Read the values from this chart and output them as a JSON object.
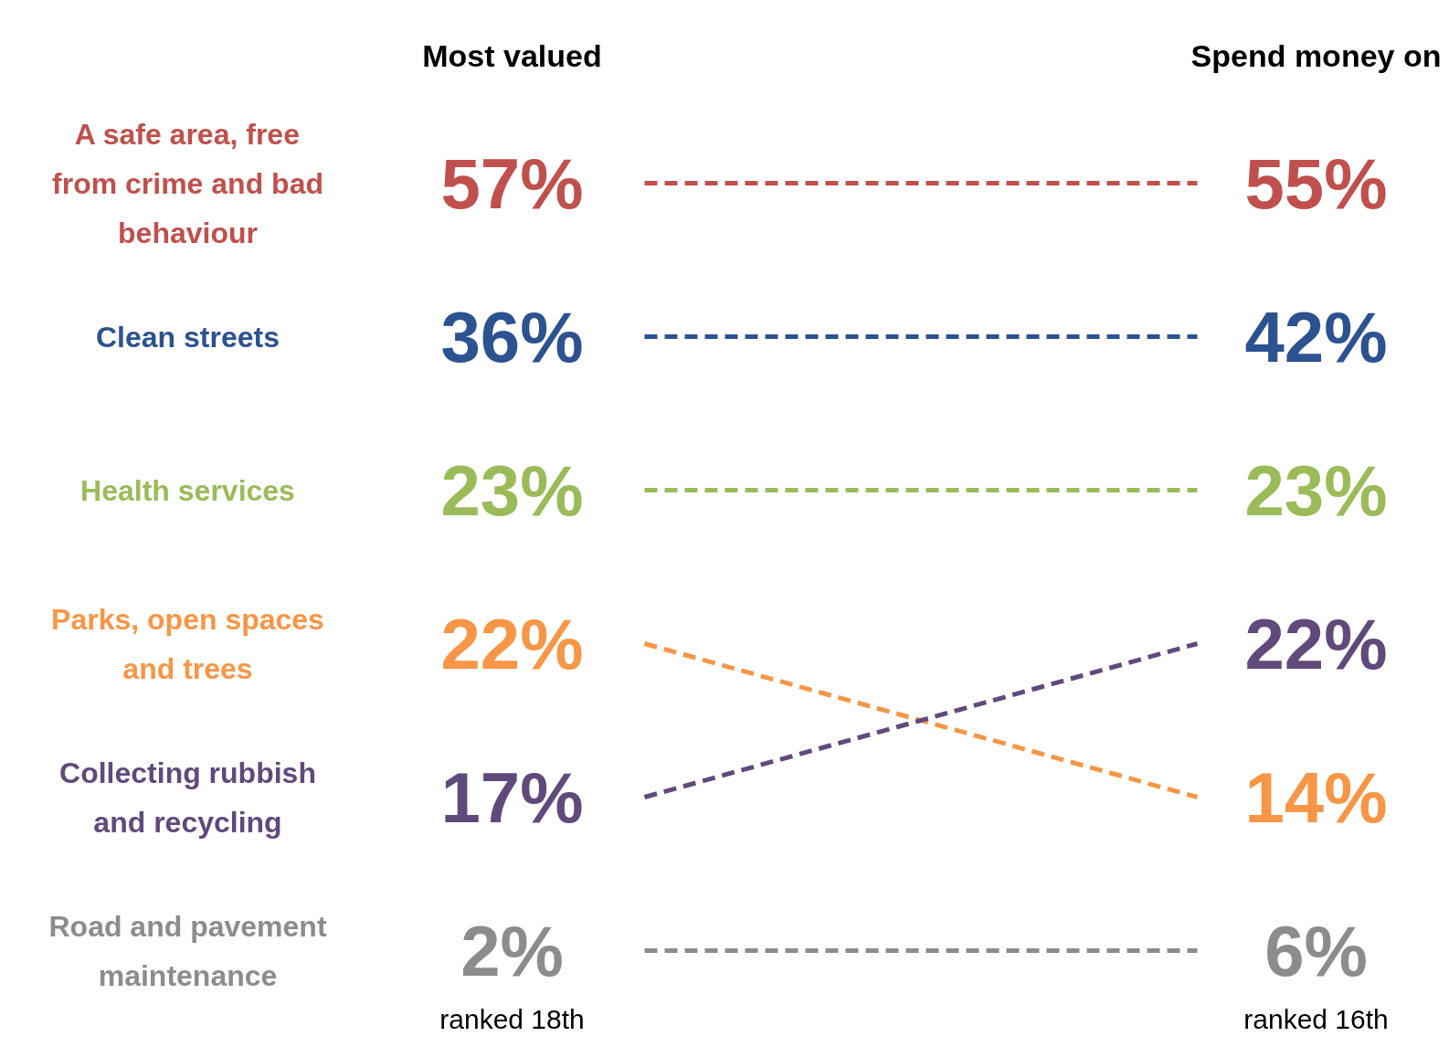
{
  "chart_data": {
    "type": "other",
    "categories": [
      "Most valued",
      "Spend money on"
    ],
    "series": [
      {
        "name": "A safe area, free from crime and bad behaviour",
        "color": "#c0504d",
        "values": [
          57,
          55
        ],
        "value_labels": [
          "57%",
          "55%"
        ]
      },
      {
        "name": "Clean streets",
        "color": "#2c5290",
        "values": [
          36,
          42
        ],
        "value_labels": [
          "36%",
          "42%"
        ]
      },
      {
        "name": "Health services",
        "color": "#9bbb59",
        "values": [
          23,
          23
        ],
        "value_labels": [
          "23%",
          "23%"
        ]
      },
      {
        "name": "Parks, open spaces and trees",
        "color": "#f79646",
        "values": [
          22,
          14
        ],
        "value_labels": [
          "22%",
          "14%"
        ]
      },
      {
        "name": "Collecting rubbish and recycling",
        "color": "#604a7b",
        "values": [
          17,
          22
        ],
        "value_labels": [
          "17%",
          "22%"
        ]
      },
      {
        "name": "Road and pavement maintenance",
        "color": "#8c8c8c",
        "values": [
          2,
          6
        ],
        "value_labels": [
          "2%",
          "6%"
        ]
      }
    ],
    "annotations": [
      "ranked 18th",
      "ranked 16th"
    ]
  }
}
